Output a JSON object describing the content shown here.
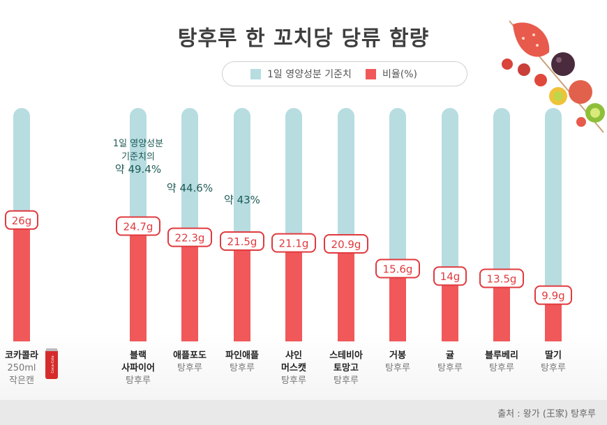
{
  "chart_data": {
    "type": "bar",
    "title": "탕후루 한 꼬치당 당류 함량",
    "legend": [
      {
        "label": "1일 영양성분 기준치",
        "color": "#b7dde1"
      },
      {
        "label": "비율(%)",
        "color": "#f0585a"
      }
    ],
    "reference_value": 50,
    "unit": "g",
    "categories": [
      {
        "lines": [
          "코카콜라",
          "250ml",
          "작은캔"
        ]
      },
      {
        "lines": [
          "블랙",
          "사파이어",
          "탕후루"
        ]
      },
      {
        "lines": [
          "애플포도",
          "탕후루"
        ]
      },
      {
        "lines": [
          "파인애플",
          "탕후루"
        ]
      },
      {
        "lines": [
          "샤인",
          "머스캣",
          "탕후루"
        ]
      },
      {
        "lines": [
          "스테비아",
          "토망고",
          "탕후루"
        ]
      },
      {
        "lines": [
          "거봉",
          "탕후루"
        ]
      },
      {
        "lines": [
          "귤",
          "탕후루"
        ]
      },
      {
        "lines": [
          "블루베리",
          "탕후루"
        ]
      },
      {
        "lines": [
          "딸기",
          "탕후루"
        ]
      }
    ],
    "values": [
      26,
      24.7,
      22.3,
      21.5,
      21.1,
      20.9,
      15.6,
      14,
      13.5,
      9.9
    ],
    "value_labels": [
      "26g",
      "24.7g",
      "22.3g",
      "21.5g",
      "21.1g",
      "20.9g",
      "15.6g",
      "14g",
      "13.5g",
      "9.9g"
    ],
    "annotations": [
      {
        "index": 1,
        "lines": [
          "1일 영양성분",
          "기준치의",
          "약 49.4%"
        ]
      },
      {
        "index": 2,
        "lines": [
          "약 44.6%"
        ]
      },
      {
        "index": 3,
        "lines": [
          "약 43%"
        ]
      }
    ],
    "grid": false,
    "legend_position": "top-center"
  },
  "source": "출처 : 왕가 (王家) 탕후루",
  "can_logo_text": "Coca-Cola"
}
